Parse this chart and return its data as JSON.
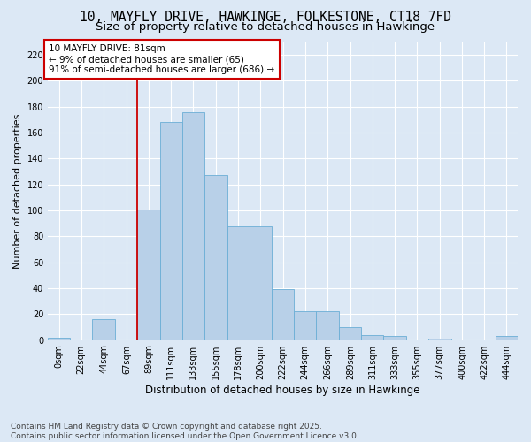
{
  "title_line1": "10, MAYFLY DRIVE, HAWKINGE, FOLKESTONE, CT18 7FD",
  "title_line2": "Size of property relative to detached houses in Hawkinge",
  "xlabel": "Distribution of detached houses by size in Hawkinge",
  "ylabel": "Number of detached properties",
  "footnote1": "Contains HM Land Registry data © Crown copyright and database right 2025.",
  "footnote2": "Contains public sector information licensed under the Open Government Licence v3.0.",
  "annotation_title": "10 MAYFLY DRIVE: 81sqm",
  "annotation_line1": "← 9% of detached houses are smaller (65)",
  "annotation_line2": "91% of semi-detached houses are larger (686) →",
  "bar_color": "#b8d0e8",
  "bar_edge_color": "#6baed6",
  "ref_line_color": "#cc0000",
  "ref_line_x": 89,
  "categories": [
    "0sqm",
    "22sqm",
    "44sqm",
    "67sqm",
    "89sqm",
    "111sqm",
    "133sqm",
    "155sqm",
    "178sqm",
    "200sqm",
    "222sqm",
    "244sqm",
    "266sqm",
    "289sqm",
    "311sqm",
    "333sqm",
    "355sqm",
    "377sqm",
    "400sqm",
    "422sqm",
    "444sqm"
  ],
  "bin_edges": [
    0,
    22,
    44,
    67,
    89,
    111,
    133,
    155,
    178,
    200,
    222,
    244,
    266,
    289,
    311,
    333,
    355,
    377,
    400,
    422,
    444,
    466
  ],
  "values": [
    2,
    0,
    16,
    0,
    101,
    168,
    176,
    127,
    88,
    88,
    39,
    22,
    22,
    10,
    4,
    3,
    0,
    1,
    0,
    0,
    3
  ],
  "ylim": [
    0,
    230
  ],
  "yticks": [
    0,
    20,
    40,
    60,
    80,
    100,
    120,
    140,
    160,
    180,
    200,
    220
  ],
  "background_color": "#dce8f5",
  "plot_background": "#dce8f5",
  "grid_color": "#ffffff",
  "annotation_box_color": "#ffffff",
  "annotation_box_edge": "#cc0000",
  "title_fontsize": 10.5,
  "subtitle_fontsize": 9.5,
  "ylabel_fontsize": 8,
  "xlabel_fontsize": 8.5,
  "tick_fontsize": 7,
  "footnote_fontsize": 6.5
}
